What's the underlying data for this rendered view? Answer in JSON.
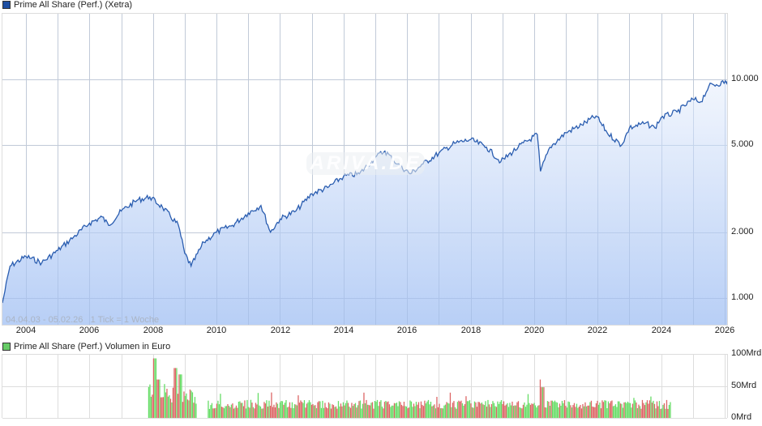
{
  "price_chart": {
    "legend": "Prime All Share (Perf.) (Xetra)",
    "legend_color": "#1e4fa3",
    "range_label": "04.04.03 - 05.02.26",
    "tick_label": "1 Tick = 1 Woche",
    "watermark": "ARIVA.DE",
    "y_labels": [
      "10.000",
      "5.000",
      "2.000",
      "1.000"
    ],
    "x_labels": [
      "2004",
      "2006",
      "2008",
      "2010",
      "2012",
      "2014",
      "2016",
      "2018",
      "2020",
      "2022",
      "2024",
      "2026"
    ],
    "line_color": "#2a5db0"
  },
  "volume_chart": {
    "legend": "Prime All Share (Perf.) Volumen in Euro",
    "legend_color": "#66cc66",
    "y_labels": [
      "100Mrd",
      "50Mrd",
      "0Mrd"
    ],
    "up_color": "#66dd66",
    "down_color": "#dd6666"
  },
  "chart_data": [
    {
      "type": "area",
      "title": "Prime All Share (Perf.) (Xetra)",
      "subtitle": "04.04.03 - 05.02.26, 1 Tick = 1 Woche",
      "xlabel": "",
      "ylabel": "",
      "y_scale": "log",
      "y_ticks": [
        1000,
        2000,
        5000,
        10000
      ],
      "ylim": [
        750,
        14000
      ],
      "x_ticks": [
        2004,
        2006,
        2008,
        2010,
        2012,
        2014,
        2016,
        2018,
        2020,
        2022,
        2024,
        2026
      ],
      "grid": true,
      "legend_position": "top-left",
      "x": [
        2003.26,
        2003.5,
        2004.0,
        2004.5,
        2005.0,
        2005.5,
        2006.0,
        2006.4,
        2006.6,
        2007.0,
        2007.5,
        2007.9,
        2008.3,
        2008.8,
        2009.0,
        2009.2,
        2009.6,
        2010.0,
        2010.5,
        2011.0,
        2011.4,
        2011.7,
        2012.0,
        2012.5,
        2013.0,
        2013.5,
        2014.0,
        2014.5,
        2015.0,
        2015.3,
        2015.7,
        2016.1,
        2016.5,
        2017.0,
        2017.5,
        2018.0,
        2018.5,
        2018.95,
        2019.5,
        2020.1,
        2020.2,
        2020.5,
        2021.0,
        2021.5,
        2021.95,
        2022.3,
        2022.75,
        2023.0,
        2023.5,
        2023.8,
        2024.0,
        2024.5,
        2025.0,
        2025.25,
        2025.5,
        2026.1
      ],
      "values": [
        950,
        1400,
        1550,
        1450,
        1650,
        1900,
        2200,
        2350,
        2150,
        2500,
        2800,
        2900,
        2600,
        2150,
        1600,
        1400,
        1800,
        2000,
        2150,
        2450,
        2650,
        2000,
        2300,
        2500,
        3000,
        3200,
        3600,
        3700,
        4400,
        4700,
        4100,
        3700,
        4100,
        4600,
        5100,
        5300,
        4900,
        4200,
        4900,
        5600,
        3800,
        4900,
        5700,
        6200,
        6800,
        5700,
        5000,
        6000,
        6300,
        6000,
        6700,
        7100,
        8100,
        7900,
        9300,
        9800
      ]
    },
    {
      "type": "bar",
      "title": "Prime All Share (Perf.) Volumen in Euro",
      "y_ticks": [
        "0Mrd",
        "50Mrd",
        "100Mrd"
      ],
      "ylim": [
        0,
        100
      ],
      "unit": "Mrd EUR",
      "x_start": 2007.85,
      "x_end": 2024.3,
      "description": "weekly volume bars, red=down week, green=up week; peaks ~93 (early 2008), ~78 (2008/09), ~60 (2020); typical 20-35"
    }
  ]
}
